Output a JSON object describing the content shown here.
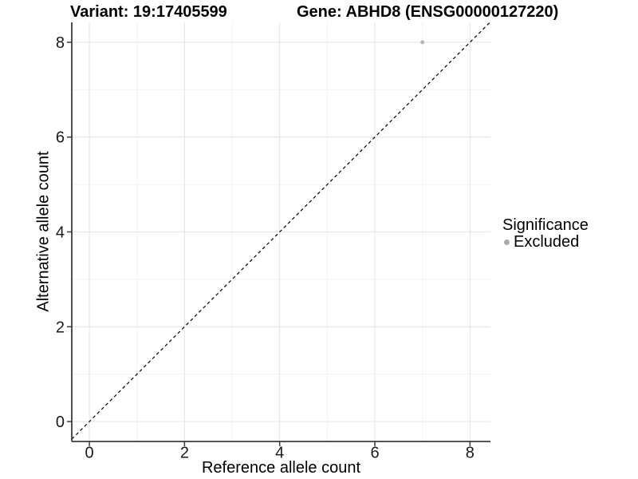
{
  "chart_data": {
    "type": "scatter",
    "titles": {
      "left": "Variant: 19:17405599",
      "right": "Gene: ABHD8 (ENSG00000127220)"
    },
    "xlabel": "Reference allele count",
    "ylabel": "Alternative allele count",
    "xlim": [
      -0.37,
      8.43
    ],
    "ylim": [
      -0.42,
      8.42
    ],
    "xticks": [
      0,
      2,
      4,
      6,
      8
    ],
    "yticks": [
      0,
      2,
      4,
      6,
      8
    ],
    "xticks_minor": [
      1,
      3,
      5,
      7
    ],
    "yticks_minor": [
      1,
      3,
      5,
      7
    ],
    "grid": true,
    "identity_line": {
      "equation": "y = x",
      "style": "dashed",
      "color": "#000000"
    },
    "series": [
      {
        "name": "Excluded",
        "color": "#b5b5b5",
        "points": [
          {
            "x": 7,
            "y": 8
          }
        ]
      }
    ],
    "legend": {
      "title": "Significance",
      "position": "right",
      "entries": [
        {
          "label": "Excluded",
          "color": "#a9a9a9"
        }
      ]
    },
    "colors": {
      "background": "#ffffff",
      "grid_major": "#e7e7e7",
      "grid_minor": "#f2f2f2",
      "axis_line": "#3c3c3c",
      "tick_label": "#1a1a1a",
      "title": "#000000"
    }
  }
}
